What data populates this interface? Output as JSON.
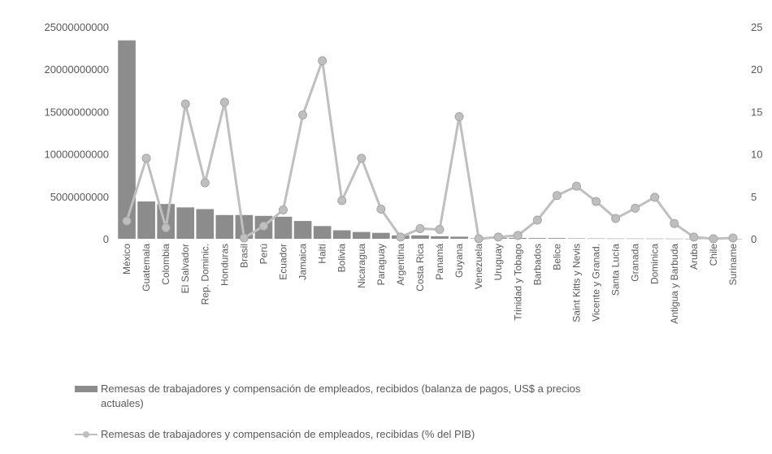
{
  "chart_data": {
    "type": "bar",
    "categories": [
      "México",
      "Guatemala",
      "Colombia",
      "El Salvador",
      "Rep. Dominic.",
      "Honduras",
      "Brasil",
      "Perú",
      "Ecuador",
      "Jamaica",
      "Haití",
      "Bolivia",
      "Nicaragua",
      "Paraguay",
      "Argentina",
      "Costa Rica",
      "Panamá",
      "Guyana",
      "Venezuela",
      "Uruguay",
      "Trinidad y Tobago",
      "Barbados",
      "Belice",
      "Saint Kitts y Nevis",
      "Vicente y Granad.",
      "Santa Lucía",
      "Granada",
      "Dominica",
      "Antigua y Barbuda",
      "Aruba",
      "Chile",
      "Suriname"
    ],
    "series": [
      {
        "name": "Remesas de trabajadores y compensación de empleados, recibidos (balanza de pagos, US$ a precios actuales)",
        "type": "bar",
        "axis": "left",
        "color": "#8c8c8c",
        "values": [
          23400000000,
          4400000000,
          4100000000,
          3700000000,
          3500000000,
          2800000000,
          2800000000,
          2700000000,
          2600000000,
          2100000000,
          1500000000,
          1000000000,
          800000000,
          700000000,
          400000000,
          400000000,
          300000000,
          250000000,
          50000000,
          100000000,
          100000000,
          80000000,
          80000000,
          50000000,
          40000000,
          30000000,
          30000000,
          25000000,
          20000000,
          10000000,
          5000000,
          5000000
        ]
      },
      {
        "name": "Remesas de trabajadores y compensación de empleados, recibidas (% del PIB)",
        "type": "line",
        "axis": "right",
        "color": "#bfbfbf",
        "values": [
          2.1,
          9.5,
          1.3,
          15.9,
          6.6,
          16.1,
          0.1,
          1.5,
          3.4,
          14.6,
          21.0,
          4.5,
          9.5,
          3.5,
          0.2,
          1.2,
          1.1,
          14.4,
          0.0,
          0.2,
          0.4,
          2.2,
          5.1,
          6.2,
          4.4,
          2.4,
          3.6,
          4.9,
          1.8,
          0.2,
          0.0,
          0.1
        ]
      }
    ],
    "y_left": {
      "ticks": [
        "25000000000",
        "20000000000",
        "15000000000",
        "10000000000",
        "5000000000",
        "0"
      ],
      "ylim": [
        0,
        25000000000
      ]
    },
    "y_right": {
      "ticks": [
        "25",
        "20",
        "15",
        "10",
        "5",
        "0"
      ],
      "ylim": [
        0,
        25
      ]
    },
    "grid": false,
    "legend_position": "bottom",
    "legend": {
      "bar_label": "Remesas de trabajadores y compensación de empleados, recibidos (balanza de pagos, US$ a precios actuales)",
      "bar_label_line1": "Remesas de trabajadores y compensación de empleados, recibidos (balanza de pagos, US$ a precios",
      "bar_label_line2": "actuales)",
      "line_label": "Remesas de trabajadores y compensación de empleados, recibidas (% del PIB)"
    }
  }
}
